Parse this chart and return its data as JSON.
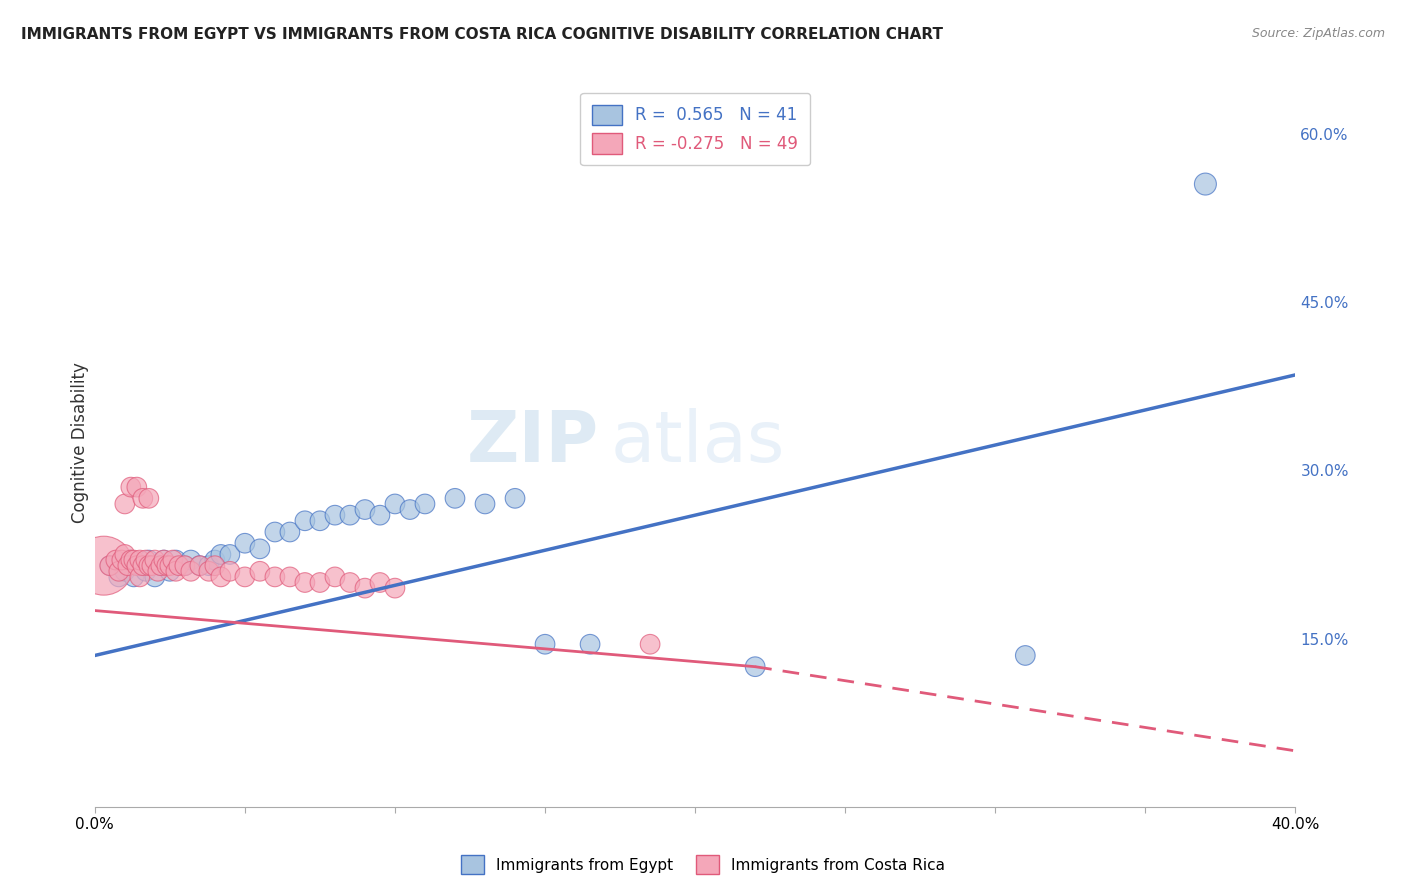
{
  "title": "IMMIGRANTS FROM EGYPT VS IMMIGRANTS FROM COSTA RICA COGNITIVE DISABILITY CORRELATION CHART",
  "source": "Source: ZipAtlas.com",
  "ylabel": "Cognitive Disability",
  "xlim": [
    0.0,
    0.4
  ],
  "ylim": [
    0.0,
    0.65
  ],
  "x_ticks": [
    0.0,
    0.05,
    0.1,
    0.15,
    0.2,
    0.25,
    0.3,
    0.35,
    0.4
  ],
  "x_tick_labels": [
    "0.0%",
    "",
    "",
    "",
    "",
    "",
    "",
    "",
    "40.0%"
  ],
  "y_ticks_right": [
    0.15,
    0.3,
    0.45,
    0.6
  ],
  "y_tick_labels_right": [
    "15.0%",
    "30.0%",
    "45.0%",
    "60.0%"
  ],
  "grid_color": "#cccccc",
  "background_color": "#ffffff",
  "legend_R_egypt": "0.565",
  "legend_N_egypt": "41",
  "legend_R_costa": "-0.275",
  "legend_N_costa": "49",
  "egypt_color": "#a8c4e0",
  "egypt_line_color": "#4472c4",
  "costa_color": "#f4a7b9",
  "costa_line_color": "#e05a7a",
  "watermark_zip": "ZIP",
  "watermark_atlas": "atlas",
  "egypt_line": [
    0.0,
    0.135,
    0.4,
    0.385
  ],
  "costa_solid_line": [
    0.0,
    0.175,
    0.22,
    0.125
  ],
  "costa_dash_line": [
    0.22,
    0.125,
    0.4,
    0.05
  ],
  "scatter_egypt": [
    [
      0.005,
      0.215
    ],
    [
      0.008,
      0.205
    ],
    [
      0.01,
      0.21
    ],
    [
      0.012,
      0.22
    ],
    [
      0.013,
      0.205
    ],
    [
      0.015,
      0.215
    ],
    [
      0.017,
      0.21
    ],
    [
      0.018,
      0.22
    ],
    [
      0.02,
      0.205
    ],
    [
      0.022,
      0.215
    ],
    [
      0.023,
      0.22
    ],
    [
      0.025,
      0.21
    ],
    [
      0.027,
      0.22
    ],
    [
      0.03,
      0.215
    ],
    [
      0.032,
      0.22
    ],
    [
      0.035,
      0.215
    ],
    [
      0.038,
      0.215
    ],
    [
      0.04,
      0.22
    ],
    [
      0.042,
      0.225
    ],
    [
      0.045,
      0.225
    ],
    [
      0.05,
      0.235
    ],
    [
      0.055,
      0.23
    ],
    [
      0.06,
      0.245
    ],
    [
      0.065,
      0.245
    ],
    [
      0.07,
      0.255
    ],
    [
      0.075,
      0.255
    ],
    [
      0.08,
      0.26
    ],
    [
      0.085,
      0.26
    ],
    [
      0.09,
      0.265
    ],
    [
      0.095,
      0.26
    ],
    [
      0.1,
      0.27
    ],
    [
      0.105,
      0.265
    ],
    [
      0.11,
      0.27
    ],
    [
      0.12,
      0.275
    ],
    [
      0.13,
      0.27
    ],
    [
      0.14,
      0.275
    ],
    [
      0.15,
      0.145
    ],
    [
      0.165,
      0.145
    ],
    [
      0.22,
      0.125
    ],
    [
      0.31,
      0.135
    ],
    [
      0.37,
      0.555
    ]
  ],
  "scatter_egypt_sizes": [
    200,
    200,
    200,
    200,
    200,
    200,
    200,
    200,
    200,
    200,
    200,
    200,
    200,
    200,
    200,
    200,
    200,
    200,
    200,
    200,
    200,
    200,
    200,
    200,
    200,
    200,
    200,
    200,
    200,
    200,
    200,
    200,
    200,
    200,
    200,
    200,
    200,
    200,
    200,
    200,
    250
  ],
  "scatter_costa": [
    [
      0.003,
      0.215
    ],
    [
      0.005,
      0.215
    ],
    [
      0.007,
      0.22
    ],
    [
      0.008,
      0.21
    ],
    [
      0.009,
      0.22
    ],
    [
      0.01,
      0.225
    ],
    [
      0.011,
      0.215
    ],
    [
      0.012,
      0.22
    ],
    [
      0.013,
      0.22
    ],
    [
      0.014,
      0.215
    ],
    [
      0.015,
      0.205
    ],
    [
      0.015,
      0.22
    ],
    [
      0.016,
      0.215
    ],
    [
      0.017,
      0.22
    ],
    [
      0.018,
      0.215
    ],
    [
      0.019,
      0.215
    ],
    [
      0.02,
      0.22
    ],
    [
      0.021,
      0.21
    ],
    [
      0.022,
      0.215
    ],
    [
      0.023,
      0.22
    ],
    [
      0.024,
      0.215
    ],
    [
      0.025,
      0.215
    ],
    [
      0.026,
      0.22
    ],
    [
      0.027,
      0.21
    ],
    [
      0.028,
      0.215
    ],
    [
      0.03,
      0.215
    ],
    [
      0.032,
      0.21
    ],
    [
      0.035,
      0.215
    ],
    [
      0.038,
      0.21
    ],
    [
      0.04,
      0.215
    ],
    [
      0.042,
      0.205
    ],
    [
      0.045,
      0.21
    ],
    [
      0.05,
      0.205
    ],
    [
      0.055,
      0.21
    ],
    [
      0.06,
      0.205
    ],
    [
      0.065,
      0.205
    ],
    [
      0.07,
      0.2
    ],
    [
      0.075,
      0.2
    ],
    [
      0.08,
      0.205
    ],
    [
      0.085,
      0.2
    ],
    [
      0.09,
      0.195
    ],
    [
      0.095,
      0.2
    ],
    [
      0.1,
      0.195
    ],
    [
      0.01,
      0.27
    ],
    [
      0.012,
      0.285
    ],
    [
      0.014,
      0.285
    ],
    [
      0.016,
      0.275
    ],
    [
      0.018,
      0.275
    ],
    [
      0.185,
      0.145
    ]
  ],
  "scatter_costa_sizes": [
    1800,
    200,
    200,
    200,
    200,
    200,
    200,
    200,
    200,
    200,
    200,
    200,
    200,
    200,
    200,
    200,
    200,
    200,
    200,
    200,
    200,
    200,
    200,
    200,
    200,
    200,
    200,
    200,
    200,
    200,
    200,
    200,
    200,
    200,
    200,
    200,
    200,
    200,
    200,
    200,
    200,
    200,
    200,
    200,
    200,
    200,
    200,
    200,
    200
  ]
}
